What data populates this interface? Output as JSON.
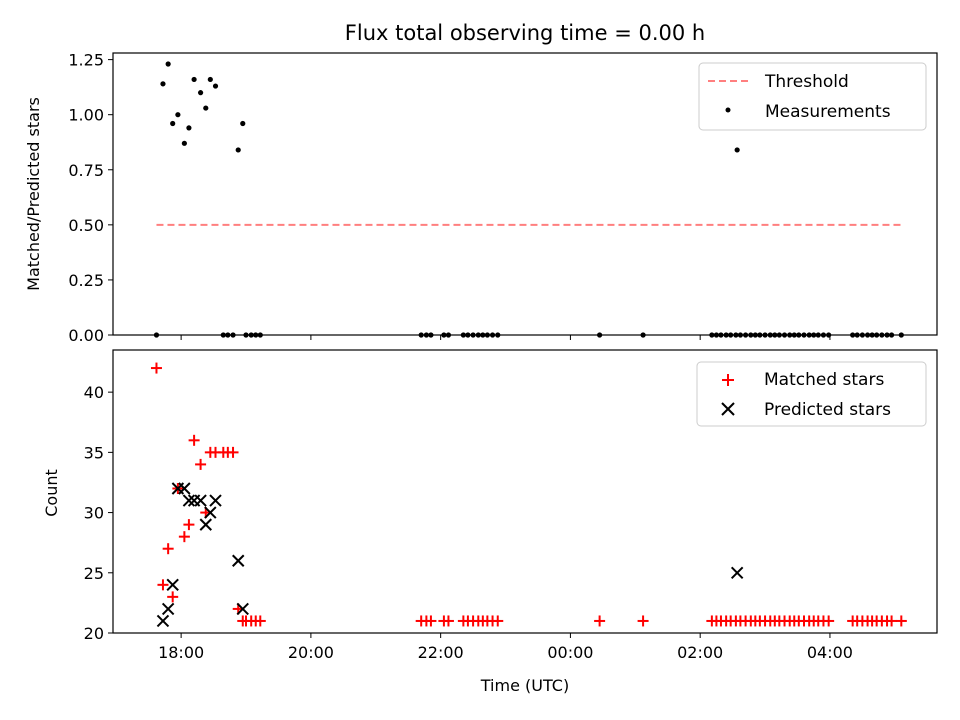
{
  "chart_data": [
    {
      "type": "scatter",
      "title": "Flux total observing time = 0.00 h",
      "xlabel": "",
      "ylabel": "Matched/Predicted stars",
      "ylim": [
        0,
        1.28
      ],
      "yticks": [
        0,
        0.25,
        0.5,
        0.75,
        1.0,
        1.25
      ],
      "ytick_labels": [
        "0.00",
        "0.25",
        "0.50",
        "0.75",
        "1.00",
        "1.25"
      ],
      "xticks_hours": [
        18,
        20,
        22,
        24,
        26,
        28
      ],
      "legend_position": "top-right",
      "series": [
        {
          "name": "Threshold",
          "kind": "line",
          "style": "dashed",
          "color": "#ff7f7f",
          "x": [
            17.62,
            29.1
          ],
          "y": [
            0.5,
            0.5
          ]
        },
        {
          "name": "Measurements",
          "kind": "scatter",
          "color": "#000000",
          "points": [
            [
              17.62,
              0
            ],
            [
              17.72,
              1.14
            ],
            [
              17.8,
              1.23
            ],
            [
              17.87,
              0.96
            ],
            [
              17.95,
              1.0
            ],
            [
              18.05,
              0.87
            ],
            [
              18.12,
              0.94
            ],
            [
              18.2,
              1.16
            ],
            [
              18.3,
              1.1
            ],
            [
              18.38,
              1.03
            ],
            [
              18.45,
              1.16
            ],
            [
              18.53,
              1.13
            ],
            [
              18.65,
              0
            ],
            [
              18.72,
              0
            ],
            [
              18.8,
              0
            ],
            [
              18.88,
              0.84
            ],
            [
              18.95,
              0.96
            ],
            [
              19.0,
              0
            ],
            [
              19.08,
              0
            ],
            [
              19.15,
              0
            ],
            [
              19.22,
              0
            ],
            [
              21.7,
              0
            ],
            [
              21.78,
              0
            ],
            [
              21.85,
              0
            ],
            [
              22.05,
              0
            ],
            [
              22.12,
              0
            ],
            [
              22.35,
              0
            ],
            [
              22.42,
              0
            ],
            [
              22.5,
              0
            ],
            [
              22.58,
              0
            ],
            [
              22.65,
              0
            ],
            [
              22.72,
              0
            ],
            [
              22.8,
              0
            ],
            [
              22.88,
              0
            ],
            [
              24.45,
              0
            ],
            [
              25.12,
              0
            ],
            [
              26.18,
              0
            ],
            [
              26.25,
              0
            ],
            [
              26.32,
              0
            ],
            [
              26.4,
              0
            ],
            [
              26.47,
              0
            ],
            [
              26.55,
              0
            ],
            [
              26.57,
              0.84
            ],
            [
              26.62,
              0
            ],
            [
              26.7,
              0
            ],
            [
              26.78,
              0
            ],
            [
              26.85,
              0
            ],
            [
              26.92,
              0
            ],
            [
              27.0,
              0
            ],
            [
              27.08,
              0
            ],
            [
              27.15,
              0
            ],
            [
              27.22,
              0
            ],
            [
              27.3,
              0
            ],
            [
              27.38,
              0
            ],
            [
              27.45,
              0
            ],
            [
              27.52,
              0
            ],
            [
              27.6,
              0
            ],
            [
              27.68,
              0
            ],
            [
              27.75,
              0
            ],
            [
              27.82,
              0
            ],
            [
              27.9,
              0
            ],
            [
              27.98,
              0
            ],
            [
              28.35,
              0
            ],
            [
              28.42,
              0
            ],
            [
              28.5,
              0
            ],
            [
              28.58,
              0
            ],
            [
              28.65,
              0
            ],
            [
              28.72,
              0
            ],
            [
              28.8,
              0
            ],
            [
              28.88,
              0
            ],
            [
              28.95,
              0
            ],
            [
              29.1,
              0
            ]
          ]
        }
      ]
    },
    {
      "type": "scatter",
      "title": "",
      "xlabel": "Time (UTC)",
      "ylabel": "Count",
      "ylim": [
        20,
        43.5
      ],
      "yticks": [
        20,
        25,
        30,
        35,
        40
      ],
      "ytick_labels": [
        "20",
        "25",
        "30",
        "35",
        "40"
      ],
      "xticks_hours": [
        18,
        20,
        22,
        24,
        26,
        28
      ],
      "xtick_labels": [
        "18:00",
        "20:00",
        "22:00",
        "00:00",
        "02:00",
        "04:00"
      ],
      "legend_position": "top-right",
      "series": [
        {
          "name": "Matched stars",
          "kind": "scatter",
          "marker": "plus",
          "color": "#ff0000",
          "points": [
            [
              17.62,
              42
            ],
            [
              17.72,
              24
            ],
            [
              17.8,
              27
            ],
            [
              17.87,
              23
            ],
            [
              17.95,
              32
            ],
            [
              18.05,
              28
            ],
            [
              18.12,
              29
            ],
            [
              18.2,
              36
            ],
            [
              18.3,
              34
            ],
            [
              18.38,
              30
            ],
            [
              18.45,
              35
            ],
            [
              18.53,
              35
            ],
            [
              18.65,
              35
            ],
            [
              18.72,
              35
            ],
            [
              18.8,
              35
            ],
            [
              18.88,
              22
            ],
            [
              18.95,
              21
            ],
            [
              19.0,
              21
            ],
            [
              19.08,
              21
            ],
            [
              19.15,
              21
            ],
            [
              19.22,
              21
            ],
            [
              21.7,
              21
            ],
            [
              21.78,
              21
            ],
            [
              21.85,
              21
            ],
            [
              22.05,
              21
            ],
            [
              22.12,
              21
            ],
            [
              22.35,
              21
            ],
            [
              22.42,
              21
            ],
            [
              22.5,
              21
            ],
            [
              22.58,
              21
            ],
            [
              22.65,
              21
            ],
            [
              22.72,
              21
            ],
            [
              22.8,
              21
            ],
            [
              22.88,
              21
            ],
            [
              24.45,
              21
            ],
            [
              25.12,
              21
            ],
            [
              26.18,
              21
            ],
            [
              26.25,
              21
            ],
            [
              26.32,
              21
            ],
            [
              26.4,
              21
            ],
            [
              26.47,
              21
            ],
            [
              26.55,
              21
            ],
            [
              26.62,
              21
            ],
            [
              26.7,
              21
            ],
            [
              26.78,
              21
            ],
            [
              26.85,
              21
            ],
            [
              26.92,
              21
            ],
            [
              27.0,
              21
            ],
            [
              27.08,
              21
            ],
            [
              27.15,
              21
            ],
            [
              27.22,
              21
            ],
            [
              27.3,
              21
            ],
            [
              27.38,
              21
            ],
            [
              27.45,
              21
            ],
            [
              27.52,
              21
            ],
            [
              27.6,
              21
            ],
            [
              27.68,
              21
            ],
            [
              27.75,
              21
            ],
            [
              27.82,
              21
            ],
            [
              27.9,
              21
            ],
            [
              27.98,
              21
            ],
            [
              28.35,
              21
            ],
            [
              28.42,
              21
            ],
            [
              28.5,
              21
            ],
            [
              28.58,
              21
            ],
            [
              28.65,
              21
            ],
            [
              28.72,
              21
            ],
            [
              28.8,
              21
            ],
            [
              28.88,
              21
            ],
            [
              28.95,
              21
            ],
            [
              29.1,
              21
            ]
          ]
        },
        {
          "name": "Predicted stars",
          "kind": "scatter",
          "marker": "x",
          "color": "#000000",
          "points": [
            [
              17.72,
              21
            ],
            [
              17.8,
              22
            ],
            [
              17.87,
              24
            ],
            [
              17.95,
              32
            ],
            [
              18.05,
              32
            ],
            [
              18.12,
              31
            ],
            [
              18.2,
              31
            ],
            [
              18.3,
              31
            ],
            [
              18.38,
              29
            ],
            [
              18.45,
              30
            ],
            [
              18.53,
              31
            ],
            [
              18.88,
              26
            ],
            [
              18.95,
              22
            ],
            [
              26.57,
              25
            ]
          ]
        }
      ]
    }
  ]
}
